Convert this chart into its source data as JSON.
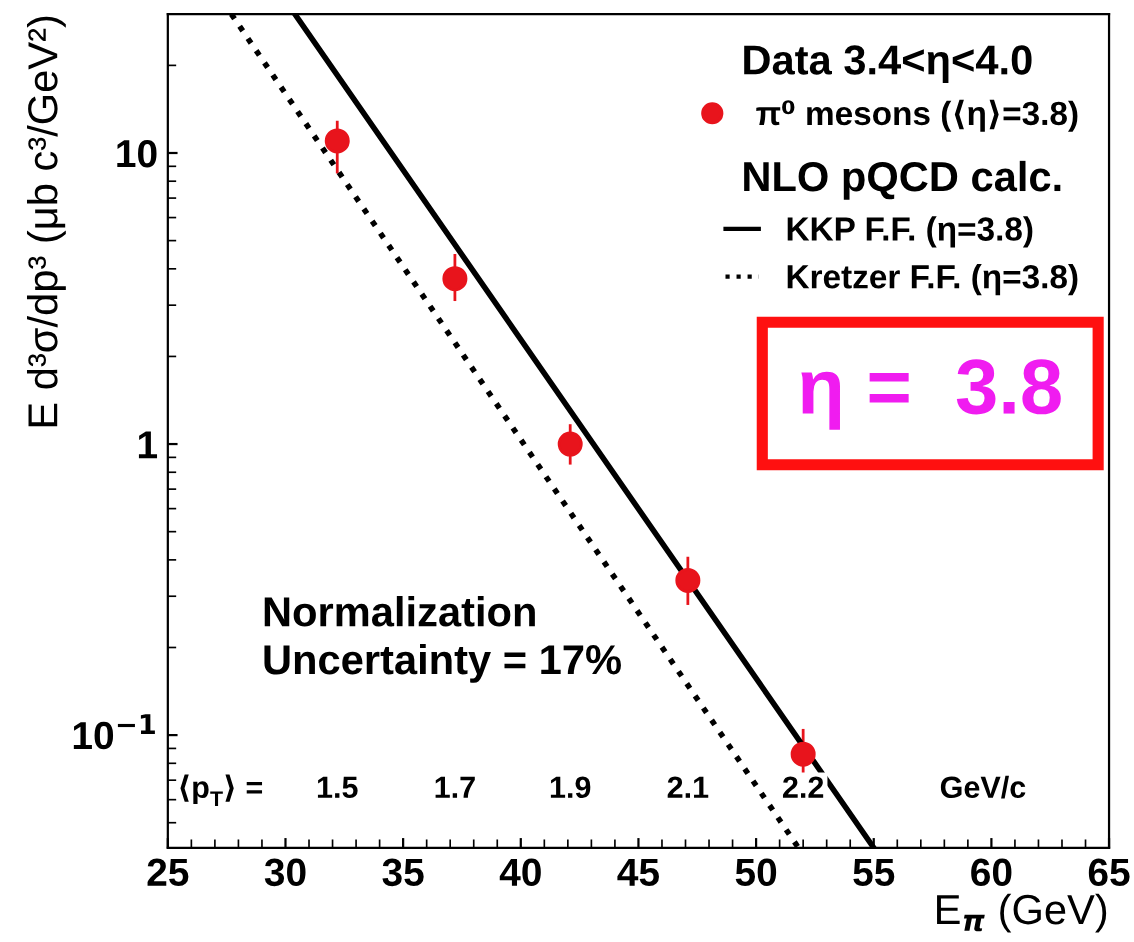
{
  "chart_data": {
    "type": "scatter",
    "xlabel": "E$_{π}$ (GeV)",
    "ylabel": "E d³σ/dp³ (μb c³/GeV²)",
    "legend_title": "Data 3.4<η<4.0",
    "log": "y",
    "legend": "top right",
    "grid": false,
    "xlim": [
      25,
      65
    ],
    "xticks": [
      25,
      30,
      35,
      40,
      45,
      50,
      55,
      60,
      65
    ],
    "ylim": [
      0.041,
      30
    ],
    "yticks": [
      {
        "value": 0.1,
        "label": "10$^{−1}$"
      },
      1,
      10
    ],
    "series": [
      {
        "name": "π⁰ mesons (⟨η⟩=3.8)",
        "marker": "circle",
        "color": "#e8141c",
        "x": [
          32.2,
          37.2,
          42.1,
          47.1,
          52.0
        ],
        "values": [
          11,
          3.7,
          1.0,
          0.34,
          0.086
        ],
        "errors": [
          [
            8.5,
            12.9
          ],
          [
            3.1,
            4.5
          ],
          [
            0.85,
            1.17
          ],
          [
            0.28,
            0.41
          ],
          [
            0.065,
            0.105
          ]
        ]
      },
      {
        "name": "KKP F.F. (η=3.8)",
        "type": "line",
        "line_style": "solid",
        "color": "#000000",
        "x": [
          30.4,
          55.0
        ],
        "values": [
          30,
          0.041
        ]
      },
      {
        "name": "Kretzer F.F. (η=3.8)",
        "type": "line",
        "line_style": "dotted",
        "color": "#000000",
        "x": [
          27.7,
          51.8
        ],
        "values": [
          30,
          0.041
        ]
      }
    ],
    "annotations": [
      "NLO pQCD calc.",
      "Normalization\nUncertainty = 17%",
      "η =  3.8",
      "⟨p$_{T}$⟩ =",
      "1.5",
      "1.7",
      "1.9",
      "2.1",
      "2.2",
      "GeV/c"
    ]
  }
}
